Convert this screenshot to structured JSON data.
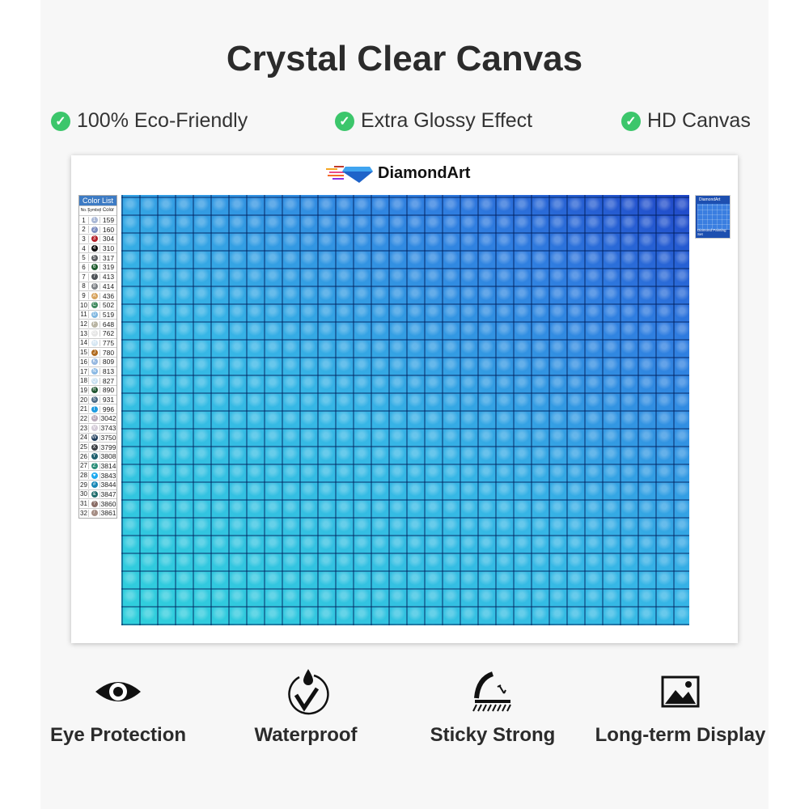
{
  "title": "Crystal Clear Canvas",
  "features": [
    "100% Eco-Friendly",
    "Extra Glossy Effect",
    "HD Canvas"
  ],
  "logo": {
    "text": "DiamondArt"
  },
  "color_list": {
    "title": "Color List",
    "headers": [
      "No.",
      "Symbol",
      "Color"
    ],
    "rows": [
      {
        "no": "1",
        "sym": "1",
        "code": "159",
        "color": "#aab8d6"
      },
      {
        "no": "2",
        "sym": "2",
        "code": "160",
        "color": "#7b8cbf"
      },
      {
        "no": "3",
        "sym": "3",
        "code": "304",
        "color": "#b3202a"
      },
      {
        "no": "4",
        "sym": "4",
        "code": "310",
        "color": "#111111"
      },
      {
        "no": "5",
        "sym": "5",
        "code": "317",
        "color": "#5c5f63"
      },
      {
        "no": "6",
        "sym": "6",
        "code": "319",
        "color": "#1f5c2e"
      },
      {
        "no": "7",
        "sym": "7",
        "code": "413",
        "color": "#4d5257"
      },
      {
        "no": "8",
        "sym": "8",
        "code": "414",
        "color": "#7d8186"
      },
      {
        "no": "9",
        "sym": "A",
        "code": "436",
        "color": "#d7a35d"
      },
      {
        "no": "10",
        "sym": "C",
        "code": "502",
        "color": "#3f8a5e"
      },
      {
        "no": "11",
        "sym": "D",
        "code": "519",
        "color": "#7eb6e0"
      },
      {
        "no": "12",
        "sym": "F",
        "code": "648",
        "color": "#b9b4a3"
      },
      {
        "no": "13",
        "sym": "G",
        "code": "762",
        "color": "#e5e5e5"
      },
      {
        "no": "14",
        "sym": "H",
        "code": "775",
        "color": "#d5e6f2"
      },
      {
        "no": "15",
        "sym": "J",
        "code": "780",
        "color": "#b06b1f"
      },
      {
        "no": "16",
        "sym": "K",
        "code": "809",
        "color": "#95b7e0"
      },
      {
        "no": "17",
        "sym": "N",
        "code": "813",
        "color": "#89b8e4"
      },
      {
        "no": "18",
        "sym": "Q",
        "code": "827",
        "color": "#c7dff0"
      },
      {
        "no": "19",
        "sym": "R",
        "code": "890",
        "color": "#1f5530"
      },
      {
        "no": "20",
        "sym": "S",
        "code": "931",
        "color": "#4d6b85"
      },
      {
        "no": "21",
        "sym": "T",
        "code": "996",
        "color": "#1e9be0"
      },
      {
        "no": "22",
        "sym": "U",
        "code": "3042",
        "color": "#b8a8b8"
      },
      {
        "no": "23",
        "sym": "V",
        "code": "3743",
        "color": "#d4ccd8"
      },
      {
        "no": "24",
        "sym": "W",
        "code": "3750",
        "color": "#1d3b5a"
      },
      {
        "no": "25",
        "sym": "X",
        "code": "3799",
        "color": "#3a3d42"
      },
      {
        "no": "26",
        "sym": "Y",
        "code": "3808",
        "color": "#1f5f6e"
      },
      {
        "no": "27",
        "sym": "Z",
        "code": "3814",
        "color": "#2c8f7a"
      },
      {
        "no": "28",
        "sym": "♥",
        "code": "3843",
        "color": "#1eaaf0"
      },
      {
        "no": "29",
        "sym": "#",
        "code": "3844",
        "color": "#1887b5"
      },
      {
        "no": "30",
        "sym": "&",
        "code": "3847",
        "color": "#1d6a6a"
      },
      {
        "no": "31",
        "sym": "?",
        "code": "3860",
        "color": "#8a6d66"
      },
      {
        "no": "32",
        "sym": "/",
        "code": "3861",
        "color": "#a58d84"
      }
    ]
  },
  "thumbnail": {
    "logo": "DiamondArt",
    "caption": "Diamond Painting Set"
  },
  "benefits": [
    "Eye Protection",
    "Waterproof",
    "Sticky Strong",
    "Long-term Display"
  ],
  "colors": {
    "check": "#3cc66b",
    "tile_light": "#2fd0dc",
    "tile_dark": "#1f46c8"
  }
}
